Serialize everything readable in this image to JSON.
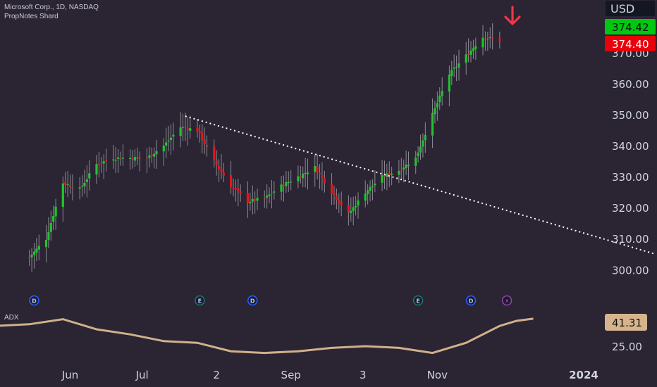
{
  "header": {
    "symbol_line": "Microsoft Corp., 1D, NASDAQ",
    "indicator_line": "PropNotes Shard"
  },
  "currency": "USD",
  "price_badges": {
    "green": "374.42",
    "red": "374.40",
    "adx": "41.31"
  },
  "colors": {
    "background": "#2a2433",
    "up": "#22c32e",
    "down": "#e0171c",
    "wick": "#8c8a93",
    "adx": "#d1b08a",
    "trendline": "#ffffff",
    "arrow": "#f23645",
    "badge_green": "#00c80f",
    "badge_red": "#e8000b",
    "badge_adx": "#d6b48e"
  },
  "adx_label": "ADX",
  "events": [
    {
      "type": "dividend",
      "icon": "D",
      "date": "2023-05-17"
    },
    {
      "type": "earnings",
      "icon": "E",
      "date": "2023-07-25"
    },
    {
      "type": "dividend",
      "icon": "D",
      "date": "2023-08-16"
    },
    {
      "type": "earnings",
      "icon": "E",
      "date": "2023-10-24"
    },
    {
      "type": "dividend",
      "icon": "D",
      "date": "2023-11-15"
    },
    {
      "type": "split",
      "icon": "⚡",
      "date": "2023-11-30"
    }
  ],
  "chart_data": [
    {
      "type": "candlestick",
      "title": "Microsoft Corp., 1D, NASDAQ",
      "x_ticks": [
        "Jun",
        "Jul",
        "2",
        "Sep",
        "3",
        "Nov",
        "2024"
      ],
      "y_ticks": [
        "300.00",
        "310.00",
        "320.00",
        "330.00",
        "340.00",
        "350.00",
        "360.00",
        "370.00"
      ],
      "ylim": [
        297,
        378
      ],
      "close_path": [
        [
          "2023-05-15",
          304
        ],
        [
          "2023-05-22",
          310
        ],
        [
          "2023-05-29",
          328
        ],
        [
          "2023-06-05",
          326
        ],
        [
          "2023-06-12",
          334
        ],
        [
          "2023-06-19",
          336
        ],
        [
          "2023-06-26",
          336
        ],
        [
          "2023-07-03",
          336
        ],
        [
          "2023-07-10",
          340
        ],
        [
          "2023-07-17",
          346
        ],
        [
          "2023-07-24",
          345
        ],
        [
          "2023-07-31",
          335
        ],
        [
          "2023-08-07",
          327
        ],
        [
          "2023-08-14",
          322
        ],
        [
          "2023-08-21",
          323
        ],
        [
          "2023-08-28",
          327
        ],
        [
          "2023-09-04",
          330
        ],
        [
          "2023-09-11",
          333
        ],
        [
          "2023-09-18",
          325
        ],
        [
          "2023-09-25",
          318
        ],
        [
          "2023-10-02",
          325
        ],
        [
          "2023-10-09",
          330
        ],
        [
          "2023-10-16",
          332
        ],
        [
          "2023-10-23",
          336
        ],
        [
          "2023-10-30",
          350
        ],
        [
          "2023-11-06",
          363
        ],
        [
          "2023-11-13",
          369
        ],
        [
          "2023-11-20",
          375
        ],
        [
          "2023-11-27",
          374
        ]
      ],
      "trendline": {
        "from": [
          "2023-07-19",
          349.5
        ],
        "to": [
          "2024-01-31",
          305
        ],
        "style": "dotted"
      },
      "last_close": 374.42
    },
    {
      "type": "line",
      "name": "ADX",
      "y_ticks": [
        "25.00"
      ],
      "last_value": 41.31,
      "ylim": [
        20,
        45
      ],
      "values": [
        [
          "2023-05-01",
          37
        ],
        [
          "2023-05-15",
          38
        ],
        [
          "2023-05-29",
          41
        ],
        [
          "2023-06-12",
          35
        ],
        [
          "2023-06-26",
          32
        ],
        [
          "2023-07-10",
          28
        ],
        [
          "2023-07-24",
          27
        ],
        [
          "2023-08-07",
          22
        ],
        [
          "2023-08-21",
          21
        ],
        [
          "2023-09-04",
          22
        ],
        [
          "2023-09-18",
          24
        ],
        [
          "2023-10-02",
          25
        ],
        [
          "2023-10-16",
          24
        ],
        [
          "2023-10-30",
          21
        ],
        [
          "2023-11-13",
          27
        ],
        [
          "2023-11-27",
          37
        ],
        [
          "2023-12-04",
          40
        ],
        [
          "2023-12-11",
          41.3
        ]
      ]
    }
  ]
}
